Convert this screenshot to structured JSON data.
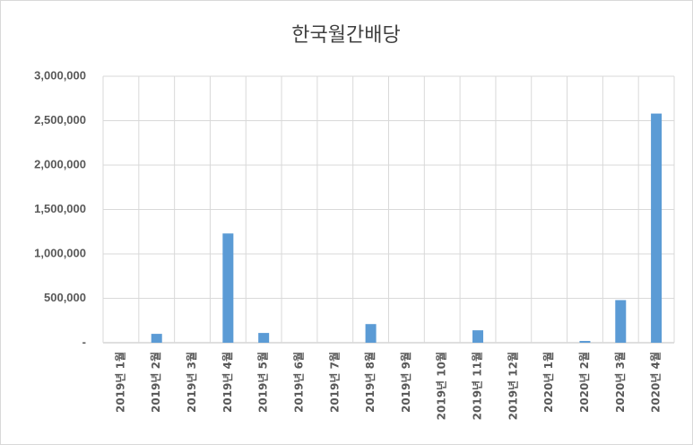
{
  "chart_data": {
    "type": "bar",
    "title": "한국월간배당",
    "categories": [
      "2019년 1월",
      "2019년 2월",
      "2019년 3월",
      "2019년 4월",
      "2019년 5월",
      "2019년 6월",
      "2019년 7월",
      "2019년 8월",
      "2019년 9월",
      "2019년 10월",
      "2019년 11월",
      "2019년 12월",
      "2020년 1월",
      "2020년 2월",
      "2020년 3월",
      "2020년 4월"
    ],
    "values": [
      0,
      100000,
      0,
      1230000,
      110000,
      0,
      0,
      210000,
      0,
      0,
      140000,
      0,
      0,
      20000,
      480000,
      2580000
    ],
    "color": "#5b9bd5",
    "ylim": [
      0,
      3000000
    ],
    "yticks": [
      {
        "value": 0,
        "label": "-"
      },
      {
        "value": 500000,
        "label": "500,000"
      },
      {
        "value": 1000000,
        "label": "1,000,000"
      },
      {
        "value": 1500000,
        "label": "1,500,000"
      },
      {
        "value": 2000000,
        "label": "2,000,000"
      },
      {
        "value": 2500000,
        "label": "2,500,000"
      },
      {
        "value": 3000000,
        "label": "3,000,000"
      }
    ],
    "grid": true
  }
}
